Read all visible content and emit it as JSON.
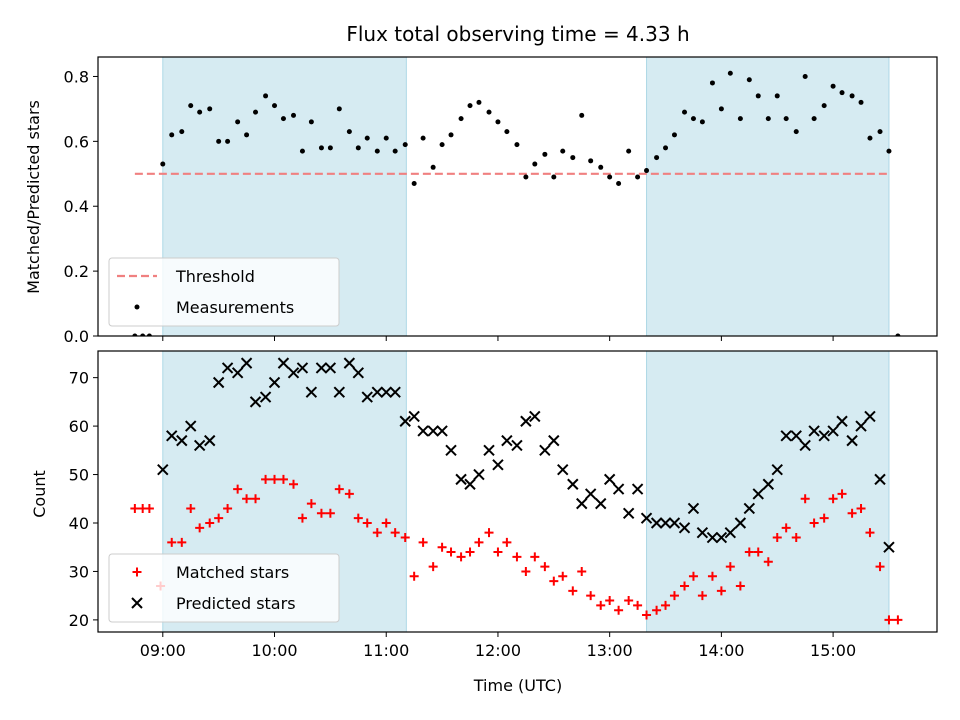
{
  "chart_data": [
    {
      "type": "scatter",
      "title": "Flux total observing time = 4.33 h",
      "xlabel": "",
      "ylabel": "Matched/Predicted stars",
      "ylim": [
        0,
        0.86
      ],
      "yticks": [
        "0.0",
        "0.2",
        "0.4",
        "0.6",
        "0.8"
      ],
      "ytick_values": [
        0,
        0.2,
        0.4,
        0.6,
        0.8
      ],
      "xticks": [
        "09:00",
        "10:00",
        "11:00",
        "12:00",
        "13:00",
        "14:00",
        "15:00"
      ],
      "xtick_hours": [
        9,
        10,
        11,
        12,
        13,
        14,
        15
      ],
      "xlim_hours": [
        8.42,
        15.93
      ],
      "shaded_regions_hours": [
        [
          9.0,
          11.18
        ],
        [
          13.33,
          15.5
        ]
      ],
      "threshold": {
        "name": "Threshold",
        "value": 0.5,
        "x_range_hours": [
          8.75,
          15.5
        ],
        "color": "#f08080"
      },
      "legend": {
        "placement": "lower-left",
        "entries": [
          "Threshold",
          "Measurements"
        ]
      },
      "series": [
        {
          "name": "Measurements",
          "color": "#000000",
          "x": [
            8.75,
            8.82,
            8.88,
            9.0,
            9.08,
            9.17,
            9.25,
            9.33,
            9.42,
            9.5,
            9.58,
            9.67,
            9.75,
            9.83,
            9.92,
            10.0,
            10.08,
            10.17,
            10.25,
            10.33,
            10.42,
            10.5,
            10.58,
            10.67,
            10.75,
            10.83,
            10.92,
            11.0,
            11.08,
            11.17,
            11.25,
            11.33,
            11.42,
            11.5,
            11.58,
            11.67,
            11.75,
            11.83,
            11.92,
            12.0,
            12.08,
            12.17,
            12.25,
            12.33,
            12.42,
            12.5,
            12.58,
            12.67,
            12.75,
            12.83,
            12.92,
            13.0,
            13.08,
            13.17,
            13.25,
            13.33,
            13.42,
            13.5,
            13.58,
            13.67,
            13.75,
            13.83,
            13.92,
            14.0,
            14.08,
            14.17,
            14.25,
            14.33,
            14.42,
            14.5,
            14.58,
            14.67,
            14.75,
            14.83,
            14.92,
            15.0,
            15.08,
            15.17,
            15.25,
            15.33,
            15.42,
            15.5,
            15.58
          ],
          "y": [
            0.0,
            0.0,
            0.0,
            0.53,
            0.62,
            0.63,
            0.71,
            0.69,
            0.7,
            0.6,
            0.6,
            0.66,
            0.62,
            0.69,
            0.74,
            0.71,
            0.67,
            0.68,
            0.57,
            0.66,
            0.58,
            0.58,
            0.7,
            0.63,
            0.58,
            0.61,
            0.57,
            0.61,
            0.57,
            0.59,
            0.47,
            0.61,
            0.52,
            0.59,
            0.62,
            0.67,
            0.71,
            0.72,
            0.69,
            0.66,
            0.63,
            0.59,
            0.49,
            0.53,
            0.56,
            0.49,
            0.57,
            0.55,
            0.68,
            0.54,
            0.52,
            0.49,
            0.47,
            0.57,
            0.49,
            0.51,
            0.55,
            0.58,
            0.62,
            0.69,
            0.67,
            0.66,
            0.78,
            0.7,
            0.81,
            0.67,
            0.79,
            0.74,
            0.67,
            0.74,
            0.67,
            0.63,
            0.8,
            0.67,
            0.71,
            0.77,
            0.75,
            0.74,
            0.72,
            0.61,
            0.63,
            0.57,
            0.0
          ]
        }
      ]
    },
    {
      "type": "scatter",
      "title": "",
      "xlabel": "Time (UTC)",
      "ylabel": "Count",
      "ylim": [
        17.5,
        75.5
      ],
      "yticks": [
        "20",
        "30",
        "40",
        "50",
        "60",
        "70"
      ],
      "ytick_values": [
        20,
        30,
        40,
        50,
        60,
        70
      ],
      "xticks": [
        "09:00",
        "10:00",
        "11:00",
        "12:00",
        "13:00",
        "14:00",
        "15:00"
      ],
      "xtick_hours": [
        9,
        10,
        11,
        12,
        13,
        14,
        15
      ],
      "xlim_hours": [
        8.42,
        15.93
      ],
      "shaded_regions_hours": [
        [
          9.0,
          11.18
        ],
        [
          13.33,
          15.5
        ]
      ],
      "legend": {
        "placement": "lower-left",
        "entries": [
          "Matched stars",
          "Predicted stars"
        ]
      },
      "series": [
        {
          "name": "Matched stars",
          "color": "#ff0000",
          "marker": "+",
          "x": [
            8.75,
            8.82,
            8.88,
            8.98,
            9.08,
            9.17,
            9.25,
            9.33,
            9.42,
            9.5,
            9.58,
            9.67,
            9.75,
            9.83,
            9.92,
            10.0,
            10.08,
            10.17,
            10.25,
            10.33,
            10.42,
            10.5,
            10.58,
            10.67,
            10.75,
            10.83,
            10.92,
            11.0,
            11.08,
            11.17,
            11.25,
            11.33,
            11.42,
            11.5,
            11.58,
            11.67,
            11.75,
            11.83,
            11.92,
            12.0,
            12.08,
            12.17,
            12.25,
            12.33,
            12.42,
            12.5,
            12.58,
            12.67,
            12.75,
            12.83,
            12.92,
            13.0,
            13.08,
            13.17,
            13.25,
            13.33,
            13.42,
            13.5,
            13.58,
            13.67,
            13.75,
            13.83,
            13.92,
            14.0,
            14.08,
            14.17,
            14.25,
            14.33,
            14.42,
            14.5,
            14.58,
            14.67,
            14.75,
            14.83,
            14.92,
            15.0,
            15.08,
            15.17,
            15.25,
            15.33,
            15.42,
            15.5,
            15.58
          ],
          "y": [
            43,
            43,
            43,
            27,
            36,
            36,
            43,
            39,
            40,
            41,
            43,
            47,
            45,
            45,
            49,
            49,
            49,
            48,
            41,
            44,
            42,
            42,
            47,
            46,
            41,
            40,
            38,
            40,
            38,
            37,
            29,
            36,
            31,
            35,
            34,
            33,
            34,
            36,
            38,
            34,
            36,
            33,
            30,
            33,
            31,
            28,
            29,
            26,
            30,
            25,
            23,
            24,
            22,
            24,
            23,
            21,
            22,
            23,
            25,
            27,
            29,
            25,
            29,
            26,
            31,
            27,
            34,
            34,
            32,
            37,
            39,
            37,
            45,
            40,
            41,
            45,
            46,
            42,
            43,
            38,
            31,
            20,
            20
          ]
        },
        {
          "name": "Predicted stars",
          "color": "#000000",
          "marker": "x",
          "x": [
            9.0,
            9.08,
            9.17,
            9.25,
            9.33,
            9.42,
            9.5,
            9.58,
            9.67,
            9.75,
            9.83,
            9.92,
            10.0,
            10.08,
            10.17,
            10.25,
            10.33,
            10.42,
            10.5,
            10.58,
            10.67,
            10.75,
            10.83,
            10.92,
            11.0,
            11.08,
            11.17,
            11.25,
            11.33,
            11.42,
            11.5,
            11.58,
            11.67,
            11.75,
            11.83,
            11.92,
            12.0,
            12.08,
            12.17,
            12.25,
            12.33,
            12.42,
            12.5,
            12.58,
            12.67,
            12.75,
            12.83,
            12.92,
            13.0,
            13.08,
            13.17,
            13.25,
            13.33,
            13.42,
            13.5,
            13.58,
            13.67,
            13.75,
            13.83,
            13.92,
            14.0,
            14.08,
            14.17,
            14.25,
            14.33,
            14.42,
            14.5,
            14.58,
            14.67,
            14.75,
            14.83,
            14.92,
            15.0,
            15.08,
            15.17,
            15.25,
            15.33,
            15.42,
            15.5
          ],
          "y": [
            51,
            58,
            57,
            60,
            56,
            57,
            69,
            72,
            71,
            73,
            65,
            66,
            69,
            73,
            71,
            72,
            67,
            72,
            72,
            67,
            73,
            71,
            66,
            67,
            67,
            67,
            61,
            62,
            59,
            59,
            59,
            55,
            49,
            48,
            50,
            55,
            52,
            57,
            56,
            61,
            62,
            55,
            57,
            51,
            48,
            44,
            46,
            44,
            49,
            47,
            42,
            47,
            41,
            40,
            40,
            40,
            39,
            43,
            38,
            37,
            37,
            38,
            40,
            43,
            46,
            48,
            51,
            58,
            58,
            56,
            59,
            58,
            59,
            61,
            57,
            60,
            62,
            49,
            35
          ]
        }
      ]
    }
  ]
}
